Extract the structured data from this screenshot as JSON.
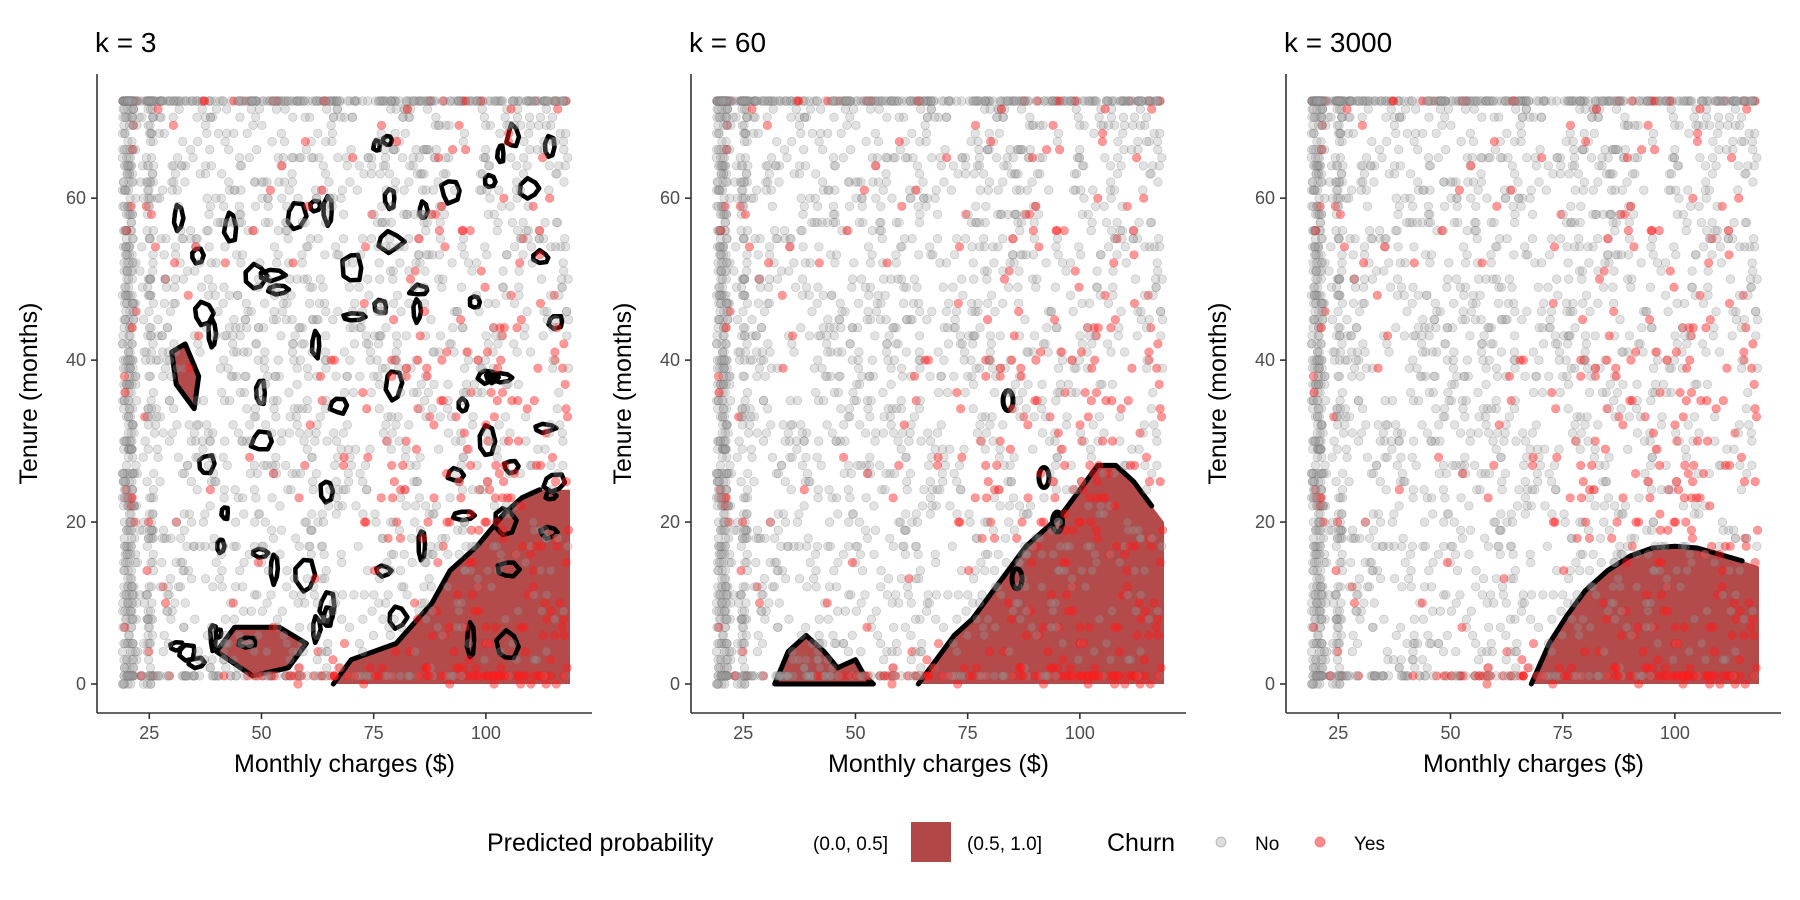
{
  "x_label": "Monthly charges ($)",
  "y_label": "Tenure (months)",
  "legend": {
    "fill_title": "Predicted probability",
    "fill_levels": [
      "(0.0, 0.5]",
      "(0.5, 1.0]"
    ],
    "churn_title": "Churn",
    "churn_levels": [
      "No",
      "Yes"
    ]
  },
  "colors": {
    "no_point": "#9e9e9e",
    "yes_point": "#ff1a1a",
    "region": "#b24747",
    "boundary": "#000000",
    "axis": "#333333"
  },
  "chart_data": [
    {
      "type": "scatter",
      "title": "k = 3",
      "xlabel": "Monthly charges ($)",
      "ylabel": "Tenure (months)",
      "xlim": [
        18.25,
        118.75
      ],
      "ylim": [
        0,
        72
      ],
      "x_ticks": [
        25,
        50,
        75,
        100
      ],
      "y_ticks": [
        0,
        20,
        40,
        60
      ],
      "grid": false,
      "series": [
        {
          "name": "No"
        },
        {
          "name": "Yes"
        }
      ],
      "decision_boundary": [
        [
          66,
          0
        ],
        [
          70,
          3
        ],
        [
          80,
          5
        ],
        [
          88,
          10
        ],
        [
          92,
          14
        ],
        [
          98,
          17
        ],
        [
          104,
          21
        ],
        [
          108,
          23
        ],
        [
          112,
          24
        ],
        [
          118.75,
          24
        ],
        [
          118.75,
          0
        ]
      ],
      "extra_regions": [
        [
          [
            31,
            37
          ],
          [
            35,
            34
          ],
          [
            36,
            38
          ],
          [
            33,
            42
          ],
          [
            30,
            41
          ]
        ],
        [
          [
            40,
            4
          ],
          [
            48,
            1
          ],
          [
            56,
            2
          ],
          [
            60,
            5
          ],
          [
            54,
            7
          ],
          [
            44,
            7
          ]
        ]
      ]
    },
    {
      "type": "scatter",
      "title": "k = 60",
      "xlabel": "Monthly charges ($)",
      "ylabel": "Tenure (months)",
      "xlim": [
        18.25,
        118.75
      ],
      "ylim": [
        0,
        72
      ],
      "x_ticks": [
        25,
        50,
        75,
        100
      ],
      "y_ticks": [
        0,
        20,
        40,
        60
      ],
      "grid": false,
      "series": [
        {
          "name": "No"
        },
        {
          "name": "Yes"
        }
      ],
      "decision_boundary": [
        [
          64,
          0
        ],
        [
          68,
          3
        ],
        [
          72,
          6
        ],
        [
          76,
          8
        ],
        [
          80,
          11
        ],
        [
          84,
          14
        ],
        [
          88,
          17
        ],
        [
          92,
          19
        ],
        [
          96,
          21
        ],
        [
          100,
          24
        ],
        [
          104,
          27
        ],
        [
          108,
          27
        ],
        [
          112,
          25
        ],
        [
          116,
          22
        ],
        [
          118.75,
          20
        ],
        [
          118.75,
          0
        ]
      ],
      "extra_regions": [
        [
          [
            32,
            0
          ],
          [
            35,
            4
          ],
          [
            39,
            6
          ],
          [
            43,
            4
          ],
          [
            46,
            2
          ],
          [
            50,
            3
          ],
          [
            52,
            1
          ],
          [
            54,
            0
          ]
        ]
      ]
    },
    {
      "type": "scatter",
      "title": "k = 3000",
      "xlabel": "Monthly charges ($)",
      "ylabel": "Tenure (months)",
      "xlim": [
        18.25,
        118.75
      ],
      "ylim": [
        0,
        72
      ],
      "x_ticks": [
        25,
        50,
        75,
        100
      ],
      "y_ticks": [
        0,
        20,
        40,
        60
      ],
      "grid": false,
      "series": [
        {
          "name": "No"
        },
        {
          "name": "Yes"
        }
      ],
      "decision_boundary": [
        [
          68,
          0
        ],
        [
          72,
          5
        ],
        [
          76,
          8.5
        ],
        [
          80,
          11.5
        ],
        [
          85,
          14
        ],
        [
          90,
          15.8
        ],
        [
          95,
          16.8
        ],
        [
          100,
          17
        ],
        [
          105,
          16.8
        ],
        [
          110,
          16
        ],
        [
          115,
          15.2
        ],
        [
          118.75,
          14.5
        ],
        [
          118.75,
          0
        ]
      ],
      "extra_regions": []
    }
  ]
}
